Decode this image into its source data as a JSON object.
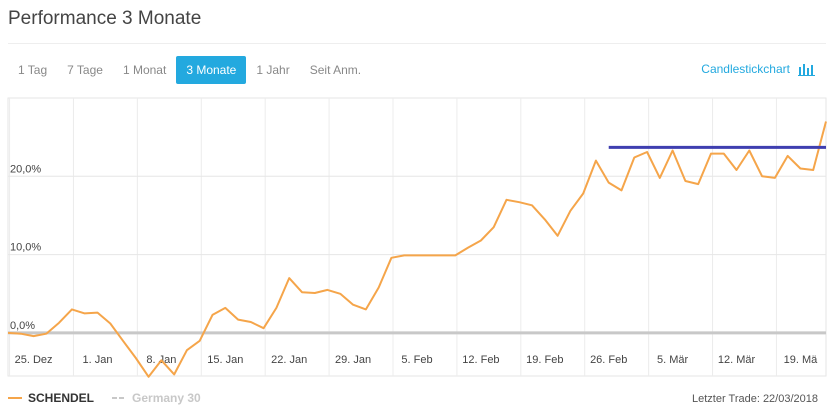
{
  "header": {
    "title": "Performance 3 Monate"
  },
  "tabs": [
    {
      "label": "1 Tag",
      "active": false
    },
    {
      "label": "7 Tage",
      "active": false
    },
    {
      "label": "1 Monat",
      "active": false
    },
    {
      "label": "3 Monate",
      "active": true
    },
    {
      "label": "1 Jahr",
      "active": false
    },
    {
      "label": "Seit Anm.",
      "active": false
    }
  ],
  "candlestick": {
    "label": "Candlestickchart",
    "icon": "bar-chart-icon"
  },
  "footer": {
    "last_trade": "Letzter Trade: 22/03/2018"
  },
  "colors": {
    "accent": "#23a9df",
    "series1": "#f5a54a",
    "series2": "#c8c8c8",
    "resistance": "#3f3fb0"
  },
  "chart_data": {
    "type": "line",
    "title": "",
    "xlabel": "",
    "ylabel": "",
    "ylim": [
      -5.5,
      30
    ],
    "y_ticks": [
      0,
      10,
      20
    ],
    "y_tick_labels": [
      "0,0%",
      "10,0%",
      "20,0%"
    ],
    "x_tick_labels": [
      "25. Dez",
      "1. Jan",
      "8. Jan",
      "15. Jan",
      "22. Jan",
      "29. Jan",
      "5. Feb",
      "12. Feb",
      "19. Feb",
      "26. Feb",
      "5. Mär",
      "12. Mär",
      "19. Mä"
    ],
    "x_tick_positions": [
      2,
      7,
      12,
      17,
      22,
      27,
      32,
      37,
      42,
      47,
      52,
      57,
      62
    ],
    "x_count": 64,
    "legend_position": "bottom-left",
    "grid": true,
    "series": [
      {
        "name": "SCHENDEL",
        "values": [
          0.0,
          -0.1,
          -0.4,
          -0.1,
          1.3,
          3.0,
          2.5,
          2.6,
          1.2,
          -1.0,
          -3.2,
          -5.6,
          -3.5,
          -5.3,
          -2.2,
          -1.0,
          2.3,
          3.2,
          1.7,
          1.4,
          0.6,
          3.2,
          7.0,
          5.2,
          5.1,
          5.5,
          5.0,
          3.6,
          3.0,
          5.8,
          9.6,
          9.9,
          9.9,
          9.9,
          9.9,
          9.9,
          10.9,
          11.8,
          13.5,
          17.0,
          16.7,
          16.3,
          14.5,
          12.4,
          15.6,
          17.8,
          22.0,
          19.2,
          18.2,
          22.4,
          23.1,
          19.8,
          23.3,
          19.4,
          19.0,
          22.9,
          22.9,
          20.8,
          23.3,
          20.0,
          19.8,
          22.6,
          21.0,
          20.8,
          27.0
        ],
        "color": "#f5a54a"
      },
      {
        "name": "Germany 30",
        "values": [
          0.0,
          0.0
        ],
        "color": "#c8c8c8"
      }
    ],
    "annotations": [
      {
        "type": "horizontal_line",
        "y": 23.7,
        "x_from": 47,
        "x_to": 64,
        "color": "#3f3fb0"
      }
    ]
  }
}
